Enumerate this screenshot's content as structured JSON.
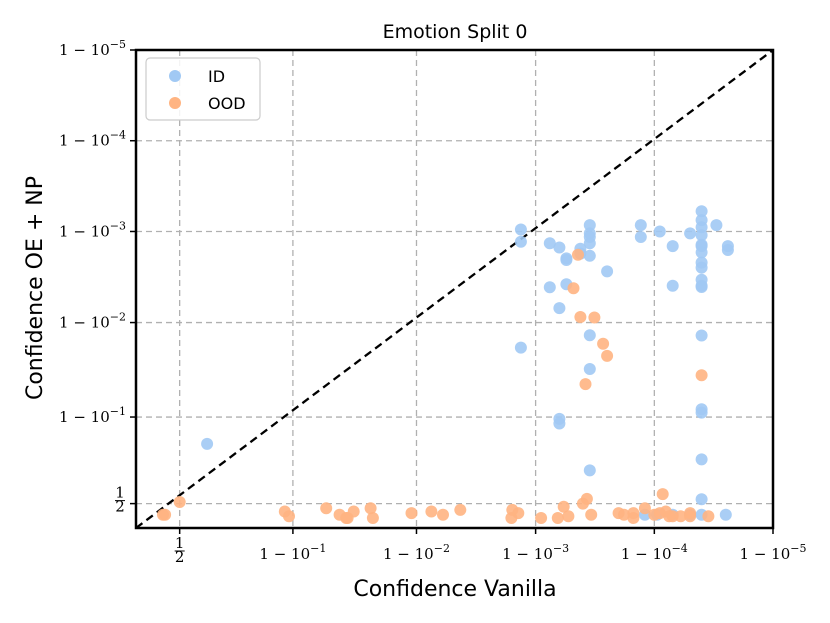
{
  "chart_data": {
    "type": "scatter",
    "title": "Emotion Split 0",
    "xlabel": "Confidence Vanilla",
    "ylabel": "Confidence OE + NP",
    "x_scale": "logit-confidence (ticks at 1 - 10^-k)",
    "y_scale": "logit-confidence (ticks at 1 - 10^-k)",
    "xlim_confidence": [
      0.3,
      0.99999
    ],
    "ylim_confidence": [
      0.35,
      0.99999
    ],
    "x_ticks": [
      {
        "value": 0.5,
        "label": "1/2"
      },
      {
        "value": 0.9,
        "label": "1 − 10^−1"
      },
      {
        "value": 0.99,
        "label": "1 − 10^−2"
      },
      {
        "value": 0.999,
        "label": "1 − 10^−3"
      },
      {
        "value": 0.9999,
        "label": "1 − 10^−4"
      },
      {
        "value": 0.99999,
        "label": "1 − 10^−5"
      }
    ],
    "y_ticks": [
      {
        "value": 0.5,
        "label": "1/2"
      },
      {
        "value": 0.9,
        "label": "1 − 10^−1"
      },
      {
        "value": 0.99,
        "label": "1 − 10^−2"
      },
      {
        "value": 0.999,
        "label": "1 − 10^−3"
      },
      {
        "value": 0.9999,
        "label": "1 − 10^−4"
      },
      {
        "value": 0.99999,
        "label": "1 − 10^−5"
      }
    ],
    "grid": true,
    "legend_position": "top-left",
    "diagonal_line": true,
    "series": [
      {
        "name": "ID",
        "color": "#a1c9f4",
        "points": [
          [
            0.63,
            0.82
          ],
          [
            0.99996,
            0.9994
          ],
          [
            0.99996,
            0.99925
          ],
          [
            0.99996,
            0.9991
          ],
          [
            0.99996,
            0.9989
          ],
          [
            0.99996,
            0.9986
          ],
          [
            0.99996,
            0.99855
          ],
          [
            0.99996,
            0.9983
          ],
          [
            0.99996,
            0.9978
          ],
          [
            0.99996,
            0.9975
          ],
          [
            0.99996,
            0.9966
          ],
          [
            0.99996,
            0.99605
          ],
          [
            0.99996,
            0.99592
          ],
          [
            0.99996,
            0.98615
          ],
          [
            0.99996,
            0.9164
          ],
          [
            0.99996,
            0.9097
          ],
          [
            0.99996,
            0.7545
          ],
          [
            0.99996,
            0.5275
          ],
          [
            0.999976,
            0.99855
          ],
          [
            0.999976,
            0.9984
          ],
          [
            0.99997,
            0.99915
          ],
          [
            0.99995,
            0.99895
          ],
          [
            0.99993,
            0.99855
          ],
          [
            0.99991,
            0.999
          ],
          [
            0.99987,
            0.99915
          ],
          [
            0.99987,
            0.99885
          ],
          [
            0.99965,
            0.99915
          ],
          [
            0.99965,
            0.99895
          ],
          [
            0.99965,
            0.99885
          ],
          [
            0.99965,
            0.99865
          ],
          [
            0.99958,
            0.99845
          ],
          [
            0.99958,
            0.99825
          ],
          [
            0.99945,
            0.99802
          ],
          [
            0.99945,
            0.99794
          ],
          [
            0.99965,
            0.99815
          ],
          [
            0.99945,
            0.9962
          ],
          [
            0.99965,
            0.98625
          ],
          [
            0.99965,
            0.9682
          ],
          [
            0.99965,
            0.699
          ],
          [
            0.99937,
            0.99305
          ],
          [
            0.99937,
            0.8956
          ],
          [
            0.99937,
            0.8843
          ],
          [
            0.99924,
            0.9959
          ],
          [
            0.99867,
            0.9987
          ],
          [
            0.99975,
            0.99725
          ],
          [
            0.99937,
            0.9985
          ],
          [
            0.99924,
            0.99865
          ],
          [
            0.99867,
            0.9813
          ],
          [
            0.99867,
            0.99905
          ],
          [
            0.999975,
            0.43
          ],
          [
            0.99996,
            0.43
          ],
          [
            0.99993,
            0.43
          ],
          [
            0.99995,
            0.43
          ],
          [
            0.999905,
            0.43
          ],
          [
            0.99988,
            0.43
          ],
          [
            0.99993,
            0.99605
          ]
        ]
      },
      {
        "name": "OOD",
        "color": "#ffb482",
        "points": [
          [
            0.42,
            0.43
          ],
          [
            0.43,
            0.43
          ],
          [
            0.5,
            0.51
          ],
          [
            0.885,
            0.45
          ],
          [
            0.893,
            0.42
          ],
          [
            0.945,
            0.47
          ],
          [
            0.957,
            0.43
          ],
          [
            0.962,
            0.41
          ],
          [
            0.963,
            0.41
          ],
          [
            0.967,
            0.45
          ],
          [
            0.976,
            0.47
          ],
          [
            0.977,
            0.41
          ],
          [
            0.989,
            0.44
          ],
          [
            0.9925,
            0.45
          ],
          [
            0.994,
            0.43
          ],
          [
            0.9957,
            0.46
          ],
          [
            0.9984,
            0.41
          ],
          [
            0.9986,
            0.44
          ],
          [
            0.99843,
            0.46
          ],
          [
            0.9991,
            0.41
          ],
          [
            0.99935,
            0.41
          ],
          [
            0.99942,
            0.48
          ],
          [
            0.99947,
            0.42
          ],
          [
            0.9996,
            0.5
          ],
          [
            0.99963,
            0.53
          ],
          [
            0.99966,
            0.43
          ],
          [
            0.9998,
            0.44
          ],
          [
            0.99982,
            0.43
          ],
          [
            0.99985,
            0.44
          ],
          [
            0.99985,
            0.41
          ],
          [
            0.99988,
            0.47
          ],
          [
            0.9999,
            0.43
          ],
          [
            0.99991,
            0.44
          ],
          [
            0.99992,
            0.45
          ],
          [
            0.999915,
            0.56
          ],
          [
            0.99993,
            0.42
          ],
          [
            0.99994,
            0.42
          ],
          [
            0.99995,
            0.44
          ],
          [
            0.99958,
            0.9913
          ],
          [
            0.99968,
            0.9912
          ],
          [
            0.99952,
            0.9958
          ],
          [
            0.99956,
            0.9982
          ],
          [
            0.99962,
            0.954
          ],
          [
            0.99975,
            0.977
          ],
          [
            0.99973,
            0.983
          ],
          [
            0.99996,
            0.963
          ],
          [
            0.999925,
            0.42
          ],
          [
            0.99995,
            0.42
          ],
          [
            0.999965,
            0.42
          ]
        ]
      }
    ]
  }
}
